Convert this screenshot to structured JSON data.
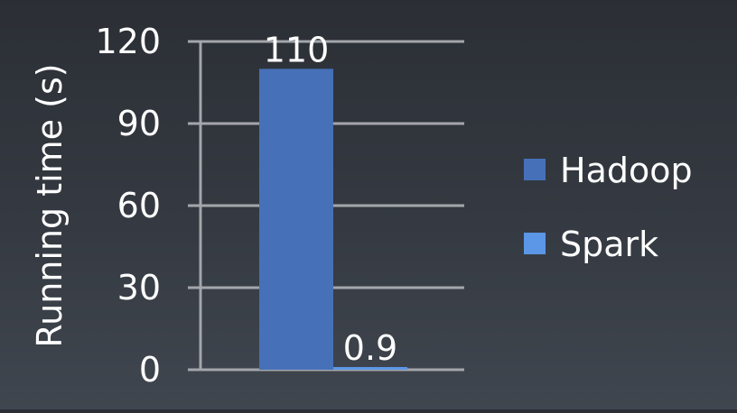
{
  "chart_data": {
    "type": "bar",
    "categories": [
      ""
    ],
    "series": [
      {
        "name": "Hadoop",
        "values": [
          110
        ],
        "color": "#4670b8"
      },
      {
        "name": "Spark",
        "values": [
          0.9
        ],
        "color": "#5b97e6"
      }
    ],
    "data_labels": [
      "110",
      "0.9"
    ],
    "title": "",
    "xlabel": "",
    "ylabel": "Running time (s)",
    "ylim": [
      0,
      120
    ],
    "yticks": [
      0,
      30,
      60,
      90,
      120
    ],
    "ytick_labels": [
      "0",
      "30",
      "60",
      "90",
      "120"
    ],
    "grid": true,
    "legend_position": "right"
  }
}
